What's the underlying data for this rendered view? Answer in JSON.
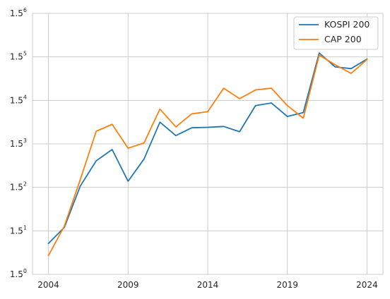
{
  "chart_data": {
    "type": "line",
    "x": [
      2004,
      2005,
      2006,
      2007,
      2008,
      2009,
      2010,
      2011,
      2012,
      2013,
      2014,
      2015,
      2016,
      2017,
      2018,
      2019,
      2020,
      2021,
      2022,
      2023,
      2024
    ],
    "series": [
      {
        "name": "KOSPI 200",
        "color": "#1f77b4",
        "exponents": [
          0.71,
          1.08,
          2.03,
          2.61,
          2.87,
          2.14,
          2.65,
          3.5,
          3.19,
          3.37,
          3.38,
          3.4,
          3.28,
          3.88,
          3.94,
          3.63,
          3.72,
          5.09,
          4.77,
          4.73,
          4.95
        ]
      },
      {
        "name": "CAP 200",
        "color": "#ff7f0e",
        "exponents": [
          0.43,
          1.11,
          2.18,
          3.29,
          3.45,
          2.9,
          3.02,
          3.8,
          3.39,
          3.69,
          3.74,
          4.28,
          4.04,
          4.24,
          4.28,
          3.88,
          3.59,
          5.04,
          4.82,
          4.62,
          4.94
        ]
      }
    ],
    "y_scale": "exponent of 1.5 (log)",
    "ylim_exponent": [
      0,
      6
    ],
    "y_tick_base": "1.5",
    "y_tick_exponents": [
      "0",
      "1",
      "2",
      "3",
      "4",
      "5",
      "6"
    ],
    "xlim": [
      2003.0,
      2025.0
    ],
    "x_ticks": [
      "2004",
      "2009",
      "2014",
      "2019",
      "2024"
    ],
    "title": "",
    "xlabel": "",
    "ylabel": "",
    "grid": true,
    "legend_position": "top-right"
  }
}
